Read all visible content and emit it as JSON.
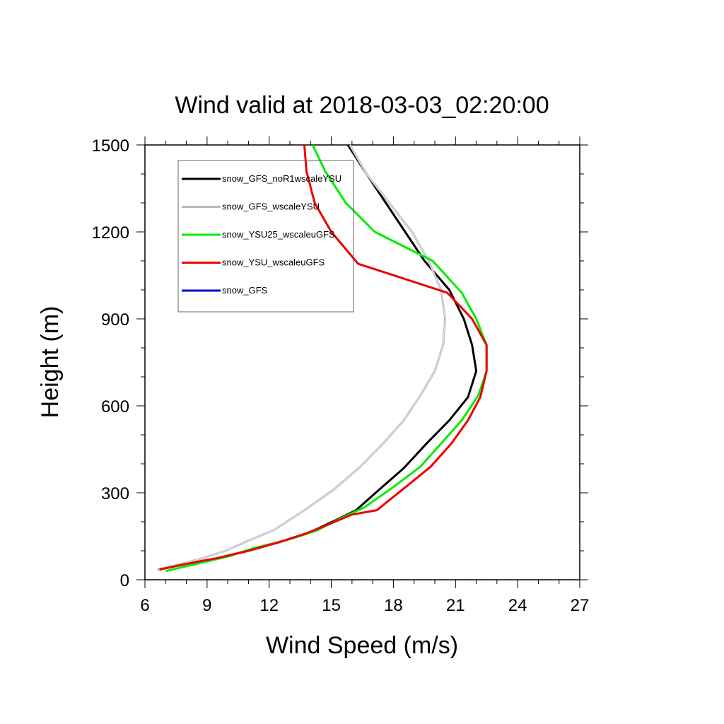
{
  "chart_data": {
    "type": "line",
    "title": "Wind valid at 2018-03-03_02:20:00",
    "xlabel": "Wind Speed (m/s)",
    "ylabel": "Height (m)",
    "xlim": [
      6,
      27
    ],
    "ylim": [
      0,
      1500
    ],
    "xticks": [
      6,
      9,
      12,
      15,
      18,
      21,
      24,
      27
    ],
    "yticks": [
      0,
      300,
      600,
      900,
      1200,
      1500
    ],
    "x_minor_step": 1,
    "y_minor_step": 100,
    "grid": false,
    "legend_position": "top-left",
    "series": [
      {
        "name": "snow_GFS_noR1wscaleYSU",
        "color": "#000000",
        "points": [
          [
            6.6,
            35
          ],
          [
            8.0,
            55
          ],
          [
            9.5,
            75
          ],
          [
            11.0,
            100
          ],
          [
            12.5,
            130
          ],
          [
            14.0,
            165
          ],
          [
            15.2,
            205
          ],
          [
            16.2,
            240
          ],
          [
            17.3,
            310
          ],
          [
            18.5,
            385
          ],
          [
            19.6,
            470
          ],
          [
            20.7,
            550
          ],
          [
            21.6,
            630
          ],
          [
            22.0,
            720
          ],
          [
            21.8,
            810
          ],
          [
            21.4,
            900
          ],
          [
            20.7,
            1000
          ],
          [
            19.5,
            1100
          ],
          [
            18.1,
            1250
          ],
          [
            16.7,
            1400
          ],
          [
            15.8,
            1500
          ]
        ]
      },
      {
        "name": "snow_GFS_wscaleYSU",
        "color": "#b8b8c0",
        "points": [
          [
            6.6,
            35
          ],
          [
            7.8,
            55
          ],
          [
            8.8,
            75
          ],
          [
            9.9,
            100
          ],
          [
            11.0,
            135
          ],
          [
            12.2,
            170
          ],
          [
            13.7,
            240
          ],
          [
            15.1,
            310
          ],
          [
            16.4,
            390
          ],
          [
            17.5,
            470
          ],
          [
            18.5,
            550
          ],
          [
            19.3,
            635
          ],
          [
            20.0,
            720
          ],
          [
            20.4,
            810
          ],
          [
            20.5,
            900
          ],
          [
            20.3,
            1000
          ],
          [
            19.7,
            1100
          ],
          [
            18.9,
            1200
          ],
          [
            17.8,
            1300
          ],
          [
            16.7,
            1400
          ],
          [
            15.9,
            1500
          ]
        ]
      },
      {
        "name": "snow_YSU25_wscaleuGFS",
        "color": "#00ee00",
        "points": [
          [
            7.0,
            30
          ],
          [
            8.5,
            55
          ],
          [
            10.0,
            80
          ],
          [
            11.3,
            110
          ],
          [
            13.0,
            140
          ],
          [
            14.3,
            170
          ],
          [
            15.4,
            210
          ],
          [
            16.6,
            250
          ],
          [
            18.0,
            320
          ],
          [
            19.3,
            390
          ],
          [
            20.3,
            470
          ],
          [
            21.3,
            550
          ],
          [
            22.1,
            635
          ],
          [
            22.5,
            720
          ],
          [
            22.5,
            810
          ],
          [
            22.0,
            900
          ],
          [
            21.3,
            990
          ],
          [
            19.9,
            1100
          ],
          [
            17.1,
            1200
          ],
          [
            15.7,
            1300
          ],
          [
            14.7,
            1410
          ],
          [
            14.1,
            1500
          ]
        ]
      },
      {
        "name": "snow_YSU_wscaleuGFS",
        "color": "#ee0000",
        "points": [
          [
            6.7,
            35
          ],
          [
            8.0,
            55
          ],
          [
            9.5,
            75
          ],
          [
            11.0,
            100
          ],
          [
            12.5,
            130
          ],
          [
            13.8,
            160
          ],
          [
            15.0,
            195
          ],
          [
            16.0,
            225
          ],
          [
            17.2,
            240
          ],
          [
            18.5,
            315
          ],
          [
            19.8,
            390
          ],
          [
            20.8,
            470
          ],
          [
            21.6,
            550
          ],
          [
            22.2,
            630
          ],
          [
            22.5,
            720
          ],
          [
            22.5,
            810
          ],
          [
            21.8,
            900
          ],
          [
            20.6,
            990
          ],
          [
            16.3,
            1090
          ],
          [
            15.0,
            1200
          ],
          [
            14.2,
            1300
          ],
          [
            13.8,
            1410
          ],
          [
            13.7,
            1500
          ]
        ]
      },
      {
        "name": "snow_GFS",
        "color": "#0000cc",
        "points": []
      }
    ]
  }
}
